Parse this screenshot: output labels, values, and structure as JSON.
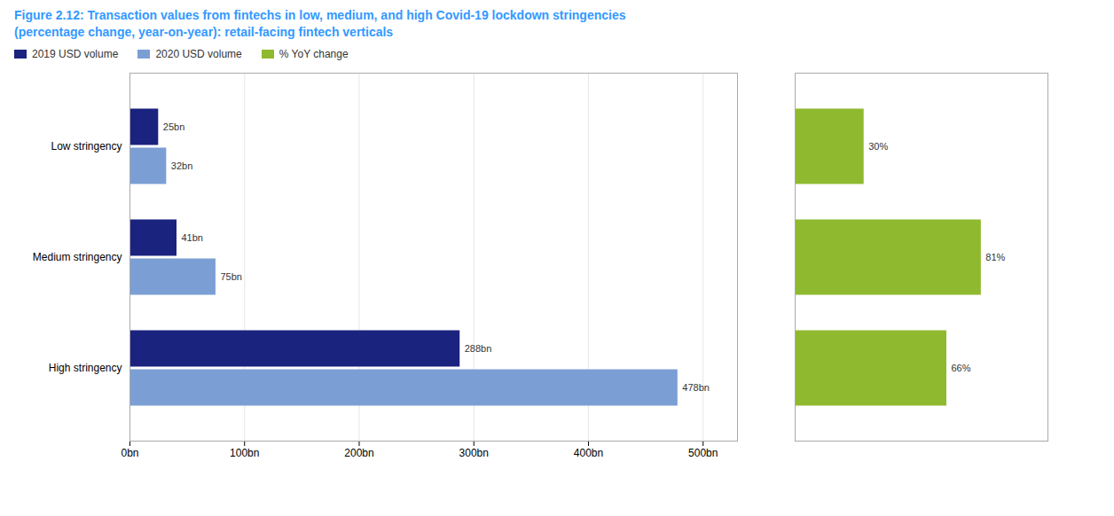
{
  "chart_data": [
    {
      "type": "bar",
      "orientation": "horizontal",
      "title": "Figure 2.12: Transaction values from fintechs in low, medium, and high Covid-19 lockdown stringencies",
      "subtitle": "(percentage change, year-on-year): retail-facing fintech verticals",
      "categories": [
        "High stringency",
        "Medium stringency",
        "Low stringency"
      ],
      "series": [
        {
          "name": "2019 USD volume",
          "color": "#1a237e",
          "values": [
            288,
            41,
            25
          ],
          "value_labels": [
            "288bn",
            "41bn",
            "25bn"
          ]
        },
        {
          "name": "2020 USD volume",
          "color": "#7b9fd4",
          "values": [
            478,
            75,
            32
          ],
          "value_labels": [
            "478bn",
            "75bn",
            "32bn"
          ]
        }
      ],
      "xlim": [
        0,
        530
      ],
      "xticks": [
        {
          "value": 0,
          "label": "0bn"
        },
        {
          "value": 100,
          "label": "100bn"
        },
        {
          "value": 200,
          "label": "200bn"
        },
        {
          "value": 300,
          "label": "300bn"
        },
        {
          "value": 400,
          "label": "400bn"
        },
        {
          "value": 500,
          "label": "500bn"
        }
      ],
      "grid": true,
      "data_labels": true,
      "legend": "upper left"
    },
    {
      "type": "bar",
      "orientation": "horizontal",
      "categories": [
        "High stringency",
        "Medium stringency",
        "Low stringency"
      ],
      "series": [
        {
          "name": "% YoY change",
          "color": "#8fba2f",
          "values": [
            66,
            81,
            30
          ],
          "value_labels": [
            "66%",
            "81%",
            "30%"
          ]
        }
      ],
      "xlim": [
        0,
        110
      ],
      "grid": false,
      "data_labels": true,
      "tick_labels": false
    }
  ]
}
